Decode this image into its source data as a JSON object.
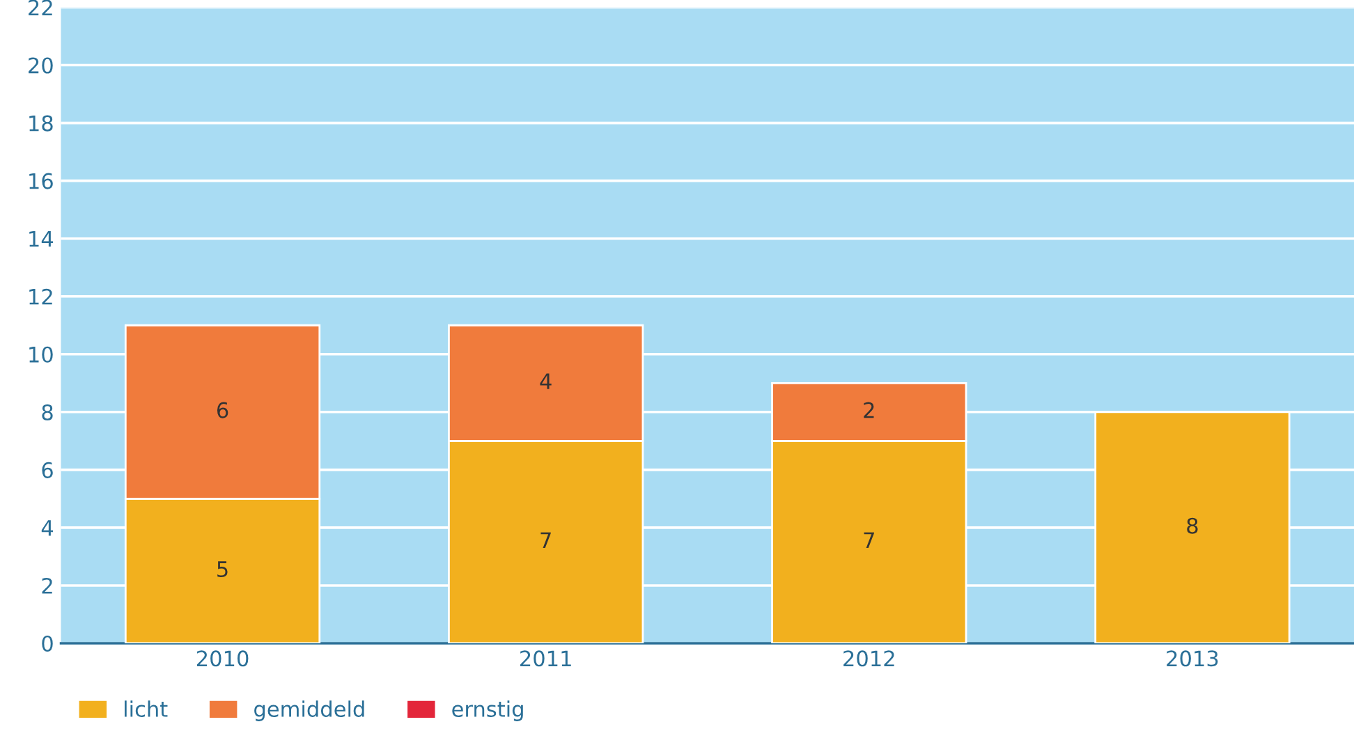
{
  "chart_data": {
    "type": "bar",
    "stacked": true,
    "categories": [
      "2010",
      "2011",
      "2012",
      "2013"
    ],
    "series": [
      {
        "name": "licht",
        "color": "#f2b01e",
        "values": [
          5,
          7,
          7,
          8
        ],
        "value_labels": [
          "5",
          "7",
          "7",
          "8"
        ]
      },
      {
        "name": "gemiddeld",
        "color": "#f07b3c",
        "values": [
          6,
          4,
          2,
          null
        ],
        "value_labels": [
          "6",
          "4",
          "2",
          null
        ]
      },
      {
        "name": "ernstig",
        "color": "#e3263a",
        "values": [
          null,
          null,
          null,
          null
        ]
      }
    ],
    "ylim": [
      0,
      22
    ],
    "yticks": [
      0,
      2,
      4,
      6,
      8,
      10,
      12,
      14,
      16,
      18,
      20,
      22
    ],
    "grid": "y",
    "legend": "bottom left"
  }
}
